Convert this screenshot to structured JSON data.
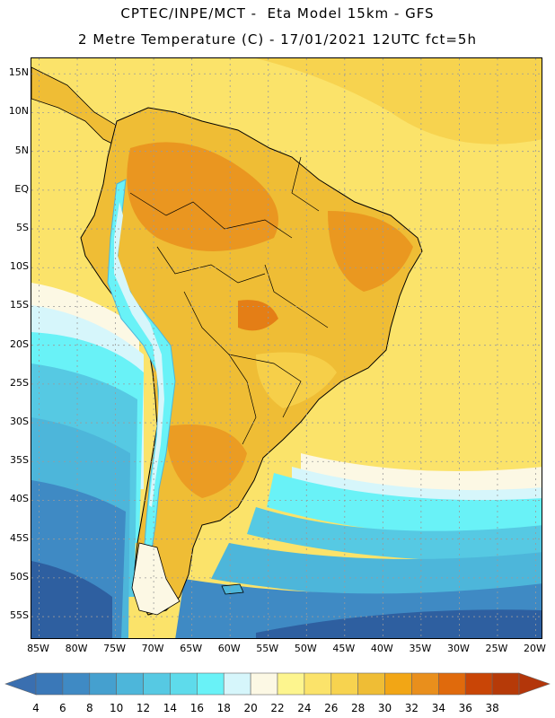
{
  "header": {
    "line1": "CPTEC/INPE/MCT -  Eta Model 15km - GFS",
    "line2": "2 Metre Temperature (C) - 17/01/2021 12UTC fct=5h"
  },
  "map": {
    "lat_labels": [
      "15N",
      "10N",
      "5N",
      "EQ",
      "5S",
      "10S",
      "15S",
      "20S",
      "25S",
      "30S",
      "35S",
      "40S",
      "45S",
      "50S",
      "55S"
    ],
    "lon_labels": [
      "85W",
      "80W",
      "75W",
      "70W",
      "65W",
      "60W",
      "55W",
      "50W",
      "45W",
      "40W",
      "35W",
      "30W",
      "25W",
      "20W"
    ],
    "lat_range": [
      17,
      -58
    ],
    "lon_range": [
      -86,
      -19
    ],
    "grid_color": "#9a9a9a",
    "coast_color": "#000000"
  },
  "colorbar": {
    "labels": [
      "4",
      "6",
      "8",
      "10",
      "12",
      "14",
      "16",
      "18",
      "20",
      "22",
      "24",
      "26",
      "28",
      "30",
      "32",
      "34",
      "36",
      "38"
    ],
    "colors": [
      "#3a78b8",
      "#3f8ac4",
      "#45a0cf",
      "#4db6da",
      "#56c9e3",
      "#5edbeb",
      "#69f2f7",
      "#d6f6fb",
      "#fcf8e4",
      "#fdf58e",
      "#fbe36a",
      "#f7d34f",
      "#efbd35",
      "#f2a615",
      "#e98f1c",
      "#e06a0c",
      "#c94506",
      "#b63a08"
    ],
    "low_color": "#3a6fb0",
    "high_color": "#b3360a"
  },
  "palette": {
    "deep_ocean": "#2e5fa0",
    "mid_ocean": "#3f8ac4",
    "cool_ocean": "#4db6da",
    "cyan": "#69f2f7",
    "pale": "#d6f6fb",
    "cream": "#fcf8e4",
    "yellow": "#fbe36a",
    "gold": "#efbd35",
    "orange": "#e98f1c",
    "dark_orange": "#e06a0c"
  }
}
